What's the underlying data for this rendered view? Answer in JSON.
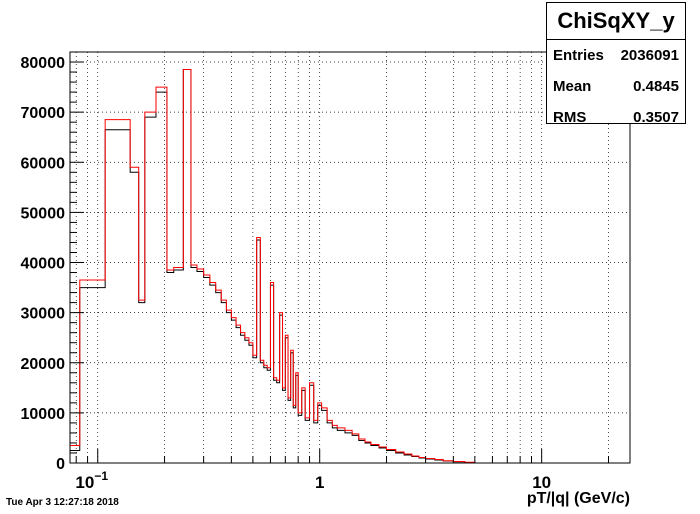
{
  "chart_data": {
    "type": "histogram",
    "title": "ChiSqXY_y",
    "xlabel": "pT/|q| (GeV/c)",
    "ylabel": "",
    "x_scale": "log",
    "xlim": [
      0.075,
      25
    ],
    "ylim": [
      0,
      82000
    ],
    "grid": true,
    "x_ticks": [
      {
        "value": 0.1,
        "base": "10",
        "exp": "−1"
      },
      {
        "value": 1,
        "base": "1",
        "exp": ""
      },
      {
        "value": 10,
        "base": "10",
        "exp": ""
      }
    ],
    "y_ticks": [
      0,
      10000,
      20000,
      30000,
      40000,
      50000,
      60000,
      70000,
      80000
    ],
    "y_tick_labels": [
      "0",
      "10000",
      "20000",
      "30000",
      "40000",
      "50000",
      "60000",
      "70000",
      "80000"
    ],
    "series": [
      {
        "color": "#000000",
        "points": [
          [
            0.075,
            2500
          ],
          [
            0.083,
            35000
          ],
          [
            0.108,
            66500
          ],
          [
            0.14,
            58000
          ],
          [
            0.153,
            32000
          ],
          [
            0.163,
            69000
          ],
          [
            0.183,
            74000
          ],
          [
            0.205,
            38000
          ],
          [
            0.22,
            38500
          ],
          [
            0.243,
            78500
          ],
          [
            0.263,
            39000
          ],
          [
            0.28,
            38200
          ],
          [
            0.3,
            37000
          ],
          [
            0.32,
            35500
          ],
          [
            0.34,
            34000
          ],
          [
            0.36,
            32000
          ],
          [
            0.38,
            30000
          ],
          [
            0.4,
            28500
          ],
          [
            0.42,
            27000
          ],
          [
            0.44,
            25500
          ],
          [
            0.46,
            24500
          ],
          [
            0.48,
            23500
          ],
          [
            0.5,
            21000
          ],
          [
            0.52,
            44500
          ],
          [
            0.54,
            20000
          ],
          [
            0.56,
            19000
          ],
          [
            0.58,
            18500
          ],
          [
            0.6,
            35500
          ],
          [
            0.62,
            16500
          ],
          [
            0.64,
            16000
          ],
          [
            0.66,
            29500
          ],
          [
            0.68,
            14500
          ],
          [
            0.7,
            25000
          ],
          [
            0.72,
            12500
          ],
          [
            0.74,
            22000
          ],
          [
            0.76,
            11000
          ],
          [
            0.78,
            17500
          ],
          [
            0.8,
            9500
          ],
          [
            0.83,
            14500
          ],
          [
            0.86,
            8500
          ],
          [
            0.9,
            15500
          ],
          [
            0.94,
            8000
          ],
          [
            0.98,
            11500
          ],
          [
            1.02,
            10500
          ],
          [
            1.08,
            8000
          ],
          [
            1.14,
            7000
          ],
          [
            1.2,
            6500
          ],
          [
            1.3,
            6000
          ],
          [
            1.4,
            5500
          ],
          [
            1.5,
            4500
          ],
          [
            1.6,
            4000
          ],
          [
            1.7,
            3500
          ],
          [
            1.85,
            3000
          ],
          [
            2.0,
            2500
          ],
          [
            2.2,
            2000
          ],
          [
            2.4,
            1600
          ],
          [
            2.6,
            1300
          ],
          [
            2.8,
            1000
          ],
          [
            3.0,
            800
          ],
          [
            3.3,
            600
          ],
          [
            3.6,
            400
          ],
          [
            4.0,
            250
          ],
          [
            4.5,
            100
          ],
          [
            5.0,
            0
          ]
        ]
      },
      {
        "color": "#ff0000",
        "points": [
          [
            0.075,
            3500
          ],
          [
            0.083,
            36500
          ],
          [
            0.108,
            68500
          ],
          [
            0.14,
            59000
          ],
          [
            0.153,
            32500
          ],
          [
            0.163,
            70000
          ],
          [
            0.183,
            75000
          ],
          [
            0.205,
            38500
          ],
          [
            0.22,
            39000
          ],
          [
            0.243,
            78500
          ],
          [
            0.263,
            39500
          ],
          [
            0.28,
            38700
          ],
          [
            0.3,
            37500
          ],
          [
            0.32,
            36000
          ],
          [
            0.34,
            34500
          ],
          [
            0.36,
            32500
          ],
          [
            0.38,
            30500
          ],
          [
            0.4,
            29000
          ],
          [
            0.42,
            27500
          ],
          [
            0.44,
            26000
          ],
          [
            0.46,
            25000
          ],
          [
            0.48,
            24000
          ],
          [
            0.5,
            21500
          ],
          [
            0.52,
            45000
          ],
          [
            0.54,
            20500
          ],
          [
            0.56,
            19500
          ],
          [
            0.58,
            19000
          ],
          [
            0.6,
            36000
          ],
          [
            0.62,
            17000
          ],
          [
            0.64,
            16500
          ],
          [
            0.66,
            30000
          ],
          [
            0.68,
            15000
          ],
          [
            0.7,
            25500
          ],
          [
            0.72,
            13000
          ],
          [
            0.74,
            22500
          ],
          [
            0.76,
            11500
          ],
          [
            0.78,
            18000
          ],
          [
            0.8,
            10000
          ],
          [
            0.83,
            15000
          ],
          [
            0.86,
            9000
          ],
          [
            0.9,
            16000
          ],
          [
            0.94,
            8500
          ],
          [
            0.98,
            12000
          ],
          [
            1.02,
            11000
          ],
          [
            1.08,
            8500
          ],
          [
            1.14,
            7500
          ],
          [
            1.2,
            7000
          ],
          [
            1.3,
            6500
          ],
          [
            1.4,
            5800
          ],
          [
            1.5,
            4800
          ],
          [
            1.6,
            4200
          ],
          [
            1.7,
            3700
          ],
          [
            1.85,
            3200
          ],
          [
            2.0,
            2700
          ],
          [
            2.2,
            2200
          ],
          [
            2.4,
            1800
          ],
          [
            2.6,
            1400
          ],
          [
            2.8,
            1100
          ],
          [
            3.0,
            900
          ],
          [
            3.3,
            700
          ],
          [
            3.6,
            450
          ],
          [
            4.0,
            300
          ],
          [
            4.5,
            150
          ],
          [
            5.0,
            0
          ]
        ]
      }
    ],
    "stats": {
      "Entries": "2036091",
      "Mean": "0.4845",
      "RMS": "0.3507"
    }
  },
  "stats_box": {
    "title": "ChiSqXY_y",
    "entries_label": "Entries",
    "entries_value": "2036091",
    "mean_label": "Mean",
    "mean_value": "0.4845",
    "rms_label": "RMS",
    "rms_value": "0.3507"
  },
  "timestamp": "Tue Apr  3 12:27:18 2018"
}
